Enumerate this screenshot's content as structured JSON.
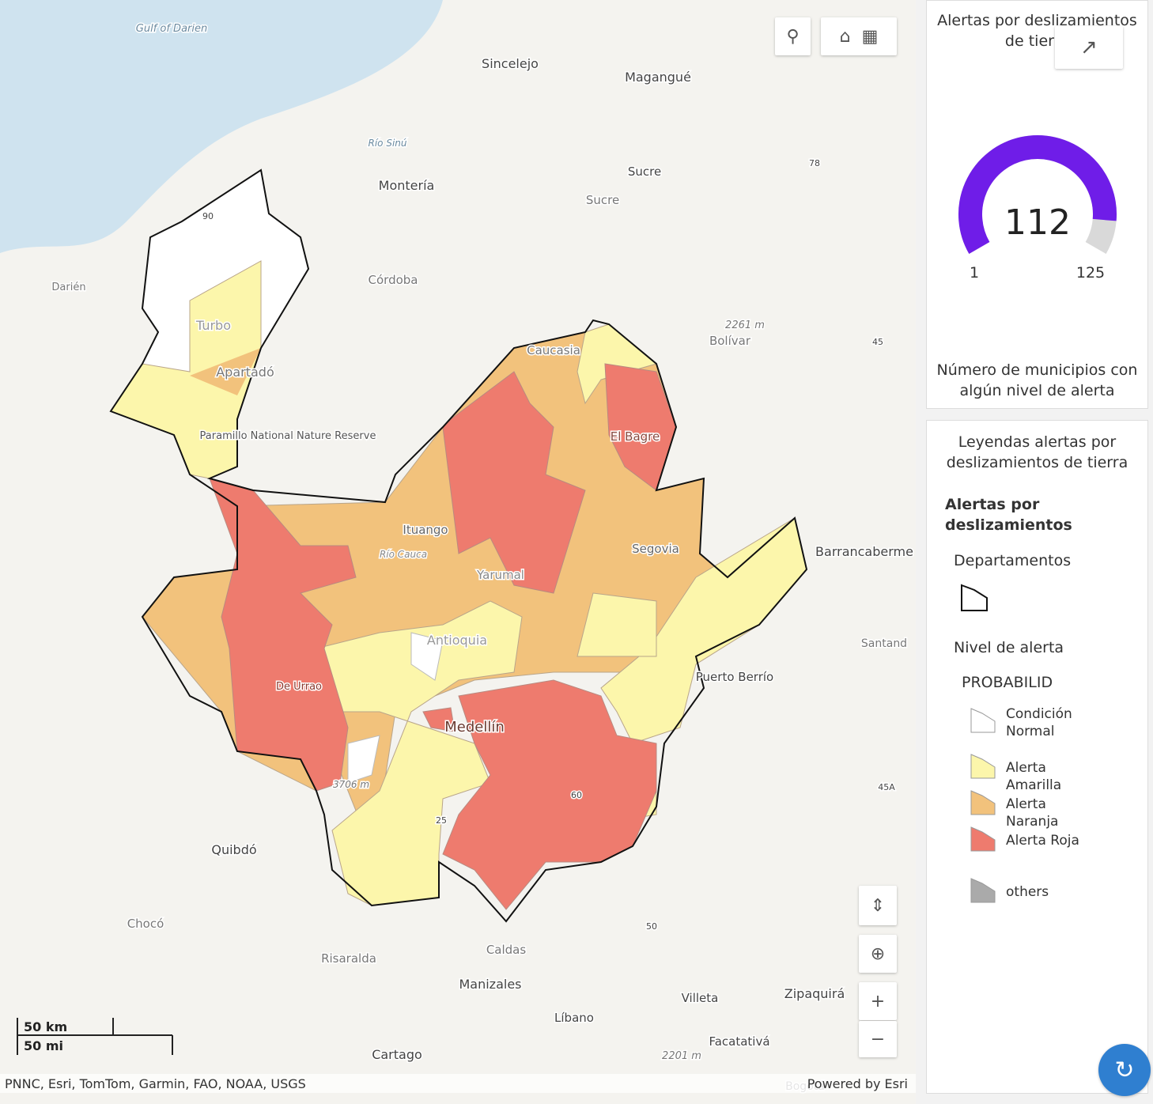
{
  "map": {
    "places": [
      "Gulf of Darien",
      "Sincelejo",
      "Magangué",
      "Río Sinú",
      "Sucre",
      "Sucre",
      "Montería",
      "Córdoba",
      "Darién",
      "Turbo",
      "Apartadó",
      "Paramillo National Nature Reserve",
      "Caucasia",
      "El Bagre",
      "2261 m",
      "Bolívar",
      "Ituango",
      "Río Cauca",
      "Segovia",
      "Yarumal",
      "Barrancaberme",
      "Antioquia",
      "Santand",
      "Puerto Berrío",
      "De Urrao",
      "Medellín",
      "3706 m",
      "Quibdó",
      "Chocó",
      "Caldas",
      "Risaralda",
      "Manizales",
      "Villeta",
      "Zipaquirá",
      "Líbano",
      "Facatativá",
      "Cartago",
      "2201 m",
      "Bogotá",
      "78",
      "45",
      "45A",
      "50",
      "60",
      "25",
      "90"
    ],
    "scale": [
      "50 km",
      "50 mi"
    ],
    "attribution": "PNNC, Esri, TomTom, Garmin, FAO, NOAA, USGS",
    "powered": "Powered by Esri"
  },
  "gauge": {
    "title": "Alertas por deslizamientos de tierra",
    "value": 112,
    "min": 1,
    "max": 125,
    "caption": "Número de municipios con algún nivel de alerta",
    "color": "#6f1de8"
  },
  "legend": {
    "title": "Leyendas alertas por deslizamientos de tierra",
    "layer": "Alertas por deslizamientos",
    "sublayer": "Departamentos",
    "field": "Nivel de alerta",
    "subfield": "PROBABILID",
    "items": [
      {
        "label": "Condición Normal",
        "color": "#ffffff"
      },
      {
        "label": "Alerta Amarilla",
        "color": "#fcf6ab"
      },
      {
        "label": "Alerta Naranja",
        "color": "#f2c27c"
      },
      {
        "label": "Alerta Roja",
        "color": "#ee7b6e"
      },
      {
        "label": "others",
        "color": "#aaaaaa"
      }
    ]
  }
}
